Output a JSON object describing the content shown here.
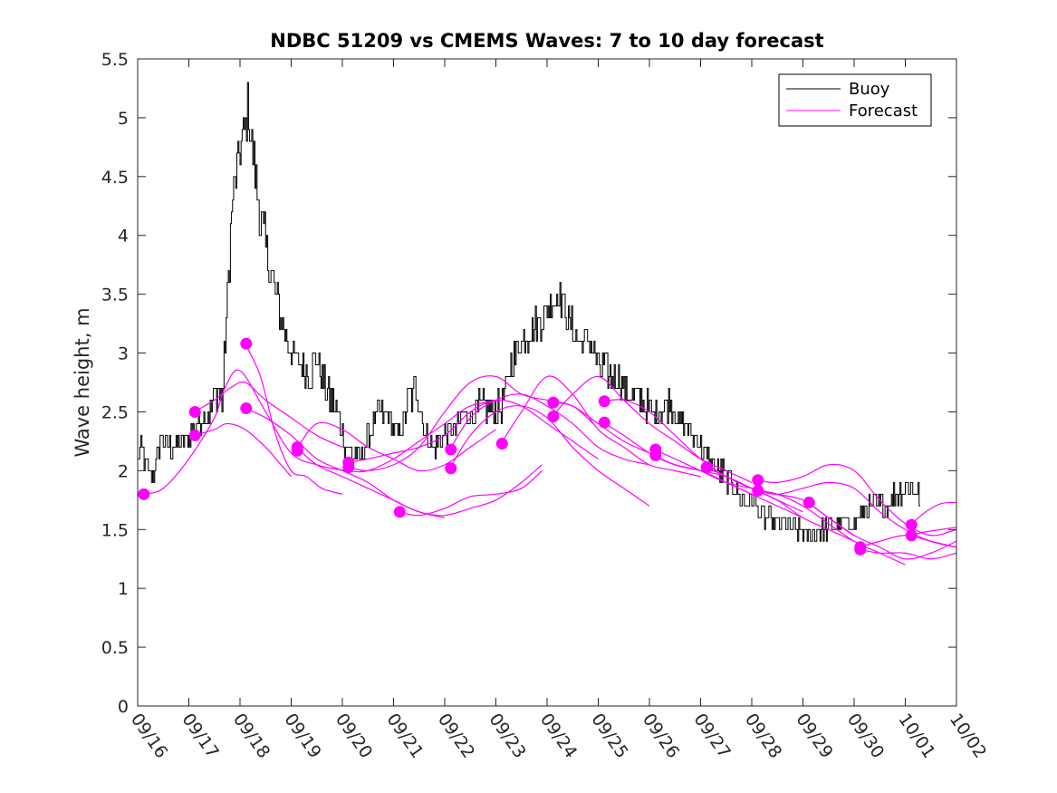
{
  "chart_data": {
    "type": "line",
    "title": "NDBC 51209 vs CMEMS Waves: 7 to 10 day forecast",
    "xlabel": "",
    "ylabel": "Wave height, m",
    "xlim": [
      0,
      16
    ],
    "ylim": [
      0,
      5.5
    ],
    "x_unit": "days since 09/16",
    "xtick_values": [
      0,
      1,
      2,
      3,
      4,
      5,
      6,
      7,
      8,
      9,
      10,
      11,
      12,
      13,
      14,
      15,
      16
    ],
    "xtick_labels": [
      "09/16",
      "09/17",
      "09/18",
      "09/19",
      "09/20",
      "09/21",
      "09/22",
      "09/23",
      "09/24",
      "09/25",
      "09/26",
      "09/27",
      "09/28",
      "09/29",
      "09/30",
      "10/01",
      "10/02"
    ],
    "ytick_values": [
      0,
      0.5,
      1,
      1.5,
      2,
      2.5,
      3,
      3.5,
      4,
      4.5,
      5,
      5.5
    ],
    "ytick_labels": [
      "0",
      "0.5",
      "1",
      "1.5",
      "2",
      "2.5",
      "3",
      "3.5",
      "4",
      "4.5",
      "5",
      "5.5"
    ],
    "grid": false,
    "legend": {
      "position": "top-right",
      "entries": [
        {
          "name": "Buoy",
          "color": "#000000"
        },
        {
          "name": "Forecast",
          "color": "#ff00ff"
        }
      ]
    },
    "colors": {
      "buoy": "#000000",
      "forecast": "#ff00ff",
      "axes": "#262626"
    },
    "buoy_anchor_points": [
      [
        0,
        2.1
      ],
      [
        0.05,
        2.2
      ],
      [
        0.2,
        2.0
      ],
      [
        0.3,
        1.95
      ],
      [
        0.45,
        2.3
      ],
      [
        0.6,
        2.2
      ],
      [
        0.8,
        2.2
      ],
      [
        1.0,
        2.3
      ],
      [
        1.2,
        2.4
      ],
      [
        1.4,
        2.5
      ],
      [
        1.55,
        2.7
      ],
      [
        1.65,
        2.6
      ],
      [
        1.75,
        3.5
      ],
      [
        1.85,
        4.3
      ],
      [
        1.95,
        4.6
      ],
      [
        2.05,
        4.8
      ],
      [
        2.15,
        5.1
      ],
      [
        2.25,
        4.7
      ],
      [
        2.4,
        4.1
      ],
      [
        2.55,
        3.8
      ],
      [
        2.7,
        3.5
      ],
      [
        2.85,
        3.2
      ],
      [
        3.0,
        3.0
      ],
      [
        3.2,
        2.9
      ],
      [
        3.35,
        2.8
      ],
      [
        3.5,
        3.0
      ],
      [
        3.6,
        2.8
      ],
      [
        3.75,
        2.6
      ],
      [
        3.9,
        2.5
      ],
      [
        4.05,
        2.2
      ],
      [
        4.2,
        2.15
      ],
      [
        4.35,
        2.1
      ],
      [
        4.5,
        2.3
      ],
      [
        4.7,
        2.5
      ],
      [
        4.9,
        2.45
      ],
      [
        5.1,
        2.3
      ],
      [
        5.3,
        2.6
      ],
      [
        5.45,
        2.7
      ],
      [
        5.6,
        2.3
      ],
      [
        5.8,
        2.2
      ],
      [
        6.0,
        2.3
      ],
      [
        6.2,
        2.35
      ],
      [
        6.4,
        2.5
      ],
      [
        6.55,
        2.45
      ],
      [
        6.7,
        2.55
      ],
      [
        6.85,
        2.55
      ],
      [
        7.0,
        2.5
      ],
      [
        7.15,
        2.6
      ],
      [
        7.3,
        2.9
      ],
      [
        7.5,
        3.1
      ],
      [
        7.7,
        3.2
      ],
      [
        7.9,
        3.3
      ],
      [
        8.1,
        3.45
      ],
      [
        8.25,
        3.5
      ],
      [
        8.4,
        3.3
      ],
      [
        8.6,
        3.1
      ],
      [
        8.8,
        3.1
      ],
      [
        9.0,
        2.9
      ],
      [
        9.2,
        2.8
      ],
      [
        9.4,
        2.8
      ],
      [
        9.6,
        2.65
      ],
      [
        9.8,
        2.6
      ],
      [
        10.0,
        2.5
      ],
      [
        10.2,
        2.5
      ],
      [
        10.4,
        2.6
      ],
      [
        10.6,
        2.4
      ],
      [
        10.8,
        2.35
      ],
      [
        11.0,
        2.2
      ],
      [
        11.2,
        2.05
      ],
      [
        11.4,
        2.0
      ],
      [
        11.6,
        1.9
      ],
      [
        11.8,
        1.75
      ],
      [
        12.0,
        1.75
      ],
      [
        12.2,
        1.6
      ],
      [
        12.4,
        1.55
      ],
      [
        12.6,
        1.55
      ],
      [
        12.8,
        1.5
      ],
      [
        13.0,
        1.45
      ],
      [
        13.2,
        1.45
      ],
      [
        13.4,
        1.5
      ],
      [
        13.6,
        1.55
      ],
      [
        13.8,
        1.55
      ],
      [
        14.0,
        1.55
      ],
      [
        14.2,
        1.65
      ],
      [
        14.4,
        1.7
      ],
      [
        14.6,
        1.7
      ],
      [
        14.8,
        1.8
      ],
      [
        15.0,
        1.85
      ],
      [
        15.2,
        1.85
      ],
      [
        15.3,
        1.7
      ]
    ],
    "forecast_series": [
      {
        "name": "Forecast",
        "x": [
          0.1,
          0.5,
          1.0,
          1.5,
          1.7,
          2.0,
          2.5,
          3.0,
          3.5,
          4.1,
          4.5,
          5.0,
          5.5,
          6.0,
          6.5,
          7.1
        ],
        "y": [
          1.8,
          1.85,
          2.1,
          2.45,
          2.7,
          2.85,
          2.5,
          2.15,
          2.05,
          2.0,
          2.0,
          2.1,
          2.25,
          2.4,
          2.55,
          2.6
        ]
      },
      {
        "name": "Forecast",
        "x": [
          1.1,
          1.5,
          1.8,
          2.1,
          2.5,
          3.0,
          3.5,
          4.0
        ],
        "y": [
          2.5,
          2.6,
          2.7,
          2.75,
          2.6,
          2.45,
          2.3,
          2.2
        ]
      },
      {
        "name": "Forecast",
        "x": [
          1.1,
          1.5,
          1.75,
          2.1,
          2.5,
          2.8,
          3.0
        ],
        "y": [
          2.3,
          2.35,
          2.4,
          2.35,
          2.2,
          2.05,
          1.95
        ]
      },
      {
        "name": "Forecast",
        "x": [
          2.1,
          2.4,
          2.7,
          3.0,
          3.3,
          3.6,
          4.0
        ],
        "y": [
          3.08,
          2.8,
          2.3,
          2.0,
          1.95,
          1.85,
          1.8
        ]
      },
      {
        "name": "Forecast",
        "x": [
          2.1,
          2.5,
          3.0,
          3.5,
          4.0,
          4.5,
          5.0,
          5.5,
          6.0
        ],
        "y": [
          2.53,
          2.45,
          2.3,
          2.1,
          2.0,
          1.9,
          1.75,
          1.65,
          1.6
        ]
      },
      {
        "name": "Forecast",
        "x": [
          3.1,
          3.5,
          4.0,
          4.5,
          5.0,
          5.5,
          6.0,
          6.5,
          7.0
        ],
        "y": [
          2.18,
          2.4,
          2.35,
          2.2,
          2.1,
          2.0,
          2.05,
          2.2,
          2.35
        ]
      },
      {
        "name": "Forecast",
        "x": [
          3.1,
          3.5,
          4.0,
          4.5,
          5.0,
          5.5,
          6.0,
          6.5,
          7.0,
          7.5,
          7.9
        ],
        "y": [
          2.2,
          2.05,
          1.95,
          1.85,
          1.75,
          1.65,
          1.62,
          1.68,
          1.75,
          1.9,
          2.05
        ]
      },
      {
        "name": "Forecast",
        "x": [
          4.1,
          4.5,
          5.0,
          5.5,
          6.0,
          6.5,
          7.0,
          7.5,
          8.0,
          8.5,
          9.0
        ],
        "y": [
          2.07,
          2.1,
          2.15,
          2.2,
          2.3,
          2.5,
          2.6,
          2.55,
          2.4,
          2.25,
          2.1
        ]
      },
      {
        "name": "Forecast",
        "x": [
          4.1,
          4.5,
          5.0,
          5.5,
          6.0,
          6.5,
          7.0,
          7.5,
          8.0,
          8.5,
          8.9
        ],
        "y": [
          2.03,
          2.0,
          2.05,
          2.2,
          2.5,
          2.75,
          2.8,
          2.65,
          2.6,
          2.55,
          2.4
        ]
      },
      {
        "name": "Forecast",
        "x": [
          5.1,
          5.5,
          6.0,
          6.5,
          7.0,
          7.5,
          7.9
        ],
        "y": [
          1.65,
          1.62,
          1.68,
          1.78,
          1.8,
          1.85,
          2.0
        ]
      },
      {
        "name": "Forecast",
        "x": [
          6.1,
          6.5,
          7.0,
          7.5,
          8.0,
          8.5,
          9.0,
          9.5,
          10.0
        ],
        "y": [
          2.18,
          2.45,
          2.6,
          2.65,
          2.55,
          2.4,
          2.2,
          2.1,
          2.05
        ]
      },
      {
        "name": "Forecast",
        "x": [
          6.1,
          6.5,
          7.0,
          7.5,
          8.0,
          8.5,
          9.0,
          9.5,
          10.0
        ],
        "y": [
          2.02,
          2.3,
          2.5,
          2.55,
          2.45,
          2.2,
          2.0,
          1.85,
          1.7
        ]
      },
      {
        "name": "Forecast",
        "x": [
          7.1,
          7.5,
          8.0,
          8.5,
          9.0,
          9.5,
          10.0,
          10.5,
          11.0
        ],
        "y": [
          2.23,
          2.5,
          2.8,
          2.65,
          2.35,
          2.2,
          2.05,
          2.0,
          1.95
        ]
      },
      {
        "name": "Forecast",
        "x": [
          8.1,
          8.5,
          9.0,
          9.5,
          10.0,
          10.5,
          11.0,
          11.5,
          12.0
        ],
        "y": [
          2.58,
          2.55,
          2.4,
          2.25,
          2.15,
          2.05,
          2.0,
          1.9,
          1.8
        ]
      },
      {
        "name": "Forecast",
        "x": [
          8.1,
          8.5,
          9.0,
          9.5,
          10.0,
          10.5,
          11.0,
          11.5,
          12.0
        ],
        "y": [
          2.46,
          2.65,
          2.8,
          2.6,
          2.4,
          2.25,
          2.1,
          2.0,
          1.9
        ]
      },
      {
        "name": "Forecast",
        "x": [
          9.1,
          9.5,
          10.0,
          10.5,
          11.0,
          11.5,
          12.0,
          12.5,
          13.0
        ],
        "y": [
          2.59,
          2.6,
          2.5,
          2.3,
          2.1,
          1.95,
          1.85,
          1.75,
          1.65
        ]
      },
      {
        "name": "Forecast",
        "x": [
          9.1,
          9.5,
          10.0,
          10.5,
          11.0,
          11.5,
          12.0,
          12.5,
          13.0
        ],
        "y": [
          2.41,
          2.3,
          2.15,
          2.05,
          2.0,
          1.9,
          1.8,
          1.7,
          1.6
        ]
      },
      {
        "name": "Forecast",
        "x": [
          10.1,
          10.5,
          11.0,
          11.5,
          12.0,
          12.5,
          13.0,
          13.5,
          14.0
        ],
        "y": [
          2.18,
          2.1,
          2.0,
          1.9,
          1.85,
          1.8,
          1.75,
          1.6,
          1.45
        ]
      },
      {
        "name": "Forecast",
        "x": [
          10.1,
          10.5,
          11.0,
          11.5,
          12.0,
          12.5,
          13.0,
          13.5,
          14.0
        ],
        "y": [
          2.12,
          2.05,
          2.0,
          1.95,
          1.85,
          1.75,
          1.6,
          1.5,
          1.4
        ]
      },
      {
        "name": "Forecast",
        "x": [
          11.1,
          11.5,
          12.0,
          12.5,
          13.0,
          13.5,
          14.0,
          14.5,
          15.0
        ],
        "y": [
          2.03,
          1.95,
          1.85,
          1.8,
          1.7,
          1.55,
          1.4,
          1.3,
          1.2
        ]
      },
      {
        "name": "Forecast",
        "x": [
          12.1,
          12.5,
          13.0,
          13.5,
          14.0,
          14.5,
          15.0,
          15.5,
          16.0
        ],
        "y": [
          1.92,
          1.9,
          1.95,
          2.05,
          2.0,
          1.75,
          1.55,
          1.45,
          1.5
        ]
      },
      {
        "name": "Forecast",
        "x": [
          12.1,
          12.5,
          13.0,
          13.5,
          14.0,
          14.5,
          15.0,
          15.5,
          16.0
        ],
        "y": [
          1.83,
          1.8,
          1.85,
          1.9,
          1.85,
          1.65,
          1.5,
          1.4,
          1.35
        ]
      },
      {
        "name": "Forecast",
        "x": [
          13.1,
          13.5,
          14.0,
          14.5,
          15.0,
          15.5,
          16.0
        ],
        "y": [
          1.73,
          1.6,
          1.45,
          1.35,
          1.25,
          1.3,
          1.4
        ]
      },
      {
        "name": "Forecast",
        "x": [
          14.1,
          14.5,
          15.0,
          15.5,
          16.0
        ],
        "y": [
          1.35,
          1.4,
          1.45,
          1.4,
          1.35
        ]
      },
      {
        "name": "Forecast",
        "x": [
          14.1,
          14.5,
          15.0,
          15.5,
          16.0
        ],
        "y": [
          1.33,
          1.3,
          1.3,
          1.25,
          1.3
        ]
      },
      {
        "name": "Forecast",
        "x": [
          15.1,
          15.4,
          15.7,
          16.0
        ],
        "y": [
          1.54,
          1.65,
          1.72,
          1.73
        ]
      },
      {
        "name": "Forecast",
        "x": [
          15.1,
          15.4,
          15.7,
          16.0
        ],
        "y": [
          1.45,
          1.48,
          1.5,
          1.52
        ]
      }
    ],
    "forecast_markers": [
      [
        0.12,
        1.8
      ],
      [
        1.12,
        2.5
      ],
      [
        1.12,
        2.3
      ],
      [
        2.12,
        3.08
      ],
      [
        2.12,
        2.53
      ],
      [
        3.12,
        2.2
      ],
      [
        3.12,
        2.17
      ],
      [
        4.12,
        2.07
      ],
      [
        4.12,
        2.03
      ],
      [
        5.12,
        1.65
      ],
      [
        6.12,
        2.18
      ],
      [
        6.12,
        2.02
      ],
      [
        7.12,
        2.23
      ],
      [
        8.12,
        2.58
      ],
      [
        8.12,
        2.46
      ],
      [
        9.12,
        2.59
      ],
      [
        9.12,
        2.41
      ],
      [
        10.12,
        2.18
      ],
      [
        10.12,
        2.13
      ],
      [
        11.12,
        2.03
      ],
      [
        12.12,
        1.92
      ],
      [
        12.12,
        1.83
      ],
      [
        13.12,
        1.73
      ],
      [
        14.12,
        1.35
      ],
      [
        14.12,
        1.33
      ],
      [
        15.12,
        1.54
      ],
      [
        15.12,
        1.45
      ]
    ]
  }
}
